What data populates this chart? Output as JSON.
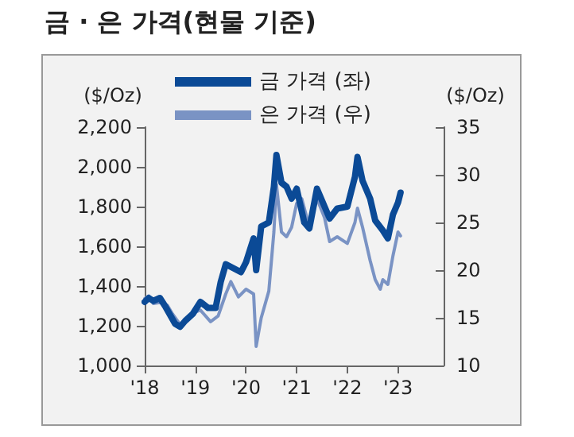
{
  "chart_data": {
    "type": "line",
    "title": "금 · 은 가격(현물 기준)",
    "ylabel": "($/Oz)",
    "y2label": "($/Oz)",
    "xlim": [
      2018,
      2023.9
    ],
    "xticks": [
      {
        "value": 2018,
        "label": "'18"
      },
      {
        "value": 2019,
        "label": "'19"
      },
      {
        "value": 2020,
        "label": "'20"
      },
      {
        "value": 2021,
        "label": "'21"
      },
      {
        "value": 2022,
        "label": "'22"
      },
      {
        "value": 2023,
        "label": "'23"
      }
    ],
    "ylim": [
      1000,
      2200
    ],
    "yticks": [
      {
        "value": 1000,
        "label": "1,000"
      },
      {
        "value": 1200,
        "label": "1,200"
      },
      {
        "value": 1400,
        "label": "1,400"
      },
      {
        "value": 1600,
        "label": "1,600"
      },
      {
        "value": 1800,
        "label": "1,800"
      },
      {
        "value": 2000,
        "label": "2,000"
      },
      {
        "value": 2200,
        "label": "2,200"
      }
    ],
    "y2lim": [
      10,
      35
    ],
    "y2ticks": [
      10,
      15,
      20,
      25,
      30,
      35
    ],
    "grid": false,
    "legend": "top",
    "marker": "none",
    "series": [
      {
        "name": "금 가격 (좌)",
        "color": "#0b4a96",
        "x": [
          2018.0,
          2018.08,
          2018.17,
          2018.3,
          2018.4,
          2018.5,
          2018.6,
          2018.7,
          2018.8,
          2018.95,
          2019.1,
          2019.25,
          2019.4,
          2019.5,
          2019.6,
          2019.75,
          2019.9,
          2020.0,
          2020.15,
          2020.2,
          2020.3,
          2020.45,
          2020.55,
          2020.6,
          2020.7,
          2020.8,
          2020.9,
          2021.0,
          2021.15,
          2021.25,
          2021.4,
          2021.55,
          2021.65,
          2021.8,
          2022.0,
          2022.15,
          2022.2,
          2022.3,
          2022.45,
          2022.55,
          2022.7,
          2022.8,
          2022.9,
          2023.0,
          2023.05
        ],
        "values": [
          1320,
          1340,
          1325,
          1340,
          1300,
          1255,
          1210,
          1195,
          1225,
          1260,
          1320,
          1290,
          1290,
          1420,
          1510,
          1490,
          1470,
          1520,
          1640,
          1480,
          1700,
          1720,
          1900,
          2060,
          1920,
          1900,
          1840,
          1890,
          1720,
          1690,
          1890,
          1800,
          1740,
          1790,
          1800,
          1950,
          2050,
          1930,
          1840,
          1730,
          1680,
          1640,
          1760,
          1820,
          1870
        ]
      },
      {
        "name": "은 가격 (우)",
        "color": "#7a93c4",
        "axis": "y2",
        "x": [
          2018.0,
          2018.08,
          2018.17,
          2018.3,
          2018.45,
          2018.55,
          2018.7,
          2018.8,
          2018.95,
          2019.1,
          2019.3,
          2019.45,
          2019.6,
          2019.7,
          2019.85,
          2020.0,
          2020.15,
          2020.2,
          2020.3,
          2020.45,
          2020.55,
          2020.6,
          2020.7,
          2020.8,
          2020.9,
          2021.0,
          2021.1,
          2021.25,
          2021.4,
          2021.55,
          2021.65,
          2021.8,
          2022.0,
          2022.15,
          2022.2,
          2022.3,
          2022.45,
          2022.55,
          2022.65,
          2022.7,
          2022.8,
          2022.9,
          2023.0,
          2023.05
        ],
        "values": [
          17.0,
          17.3,
          16.5,
          16.6,
          16.3,
          15.4,
          14.3,
          14.6,
          15.5,
          15.8,
          14.6,
          15.2,
          17.5,
          18.8,
          17.2,
          18.0,
          17.5,
          12.0,
          15.0,
          17.8,
          24.0,
          29.0,
          24.0,
          23.5,
          24.5,
          27.0,
          27.5,
          24.5,
          27.5,
          25.5,
          23.0,
          23.5,
          22.8,
          25.0,
          26.5,
          24.5,
          21.0,
          19.0,
          18.0,
          19.0,
          18.5,
          21.5,
          24.0,
          23.6
        ]
      }
    ]
  }
}
